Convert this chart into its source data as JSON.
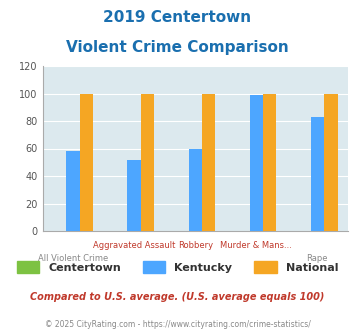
{
  "title_line1": "2019 Centertown",
  "title_line2": "Violent Crime Comparison",
  "categories": [
    "All Violent Crime",
    "Aggravated Assault",
    "Robbery",
    "Murder & Mans...",
    "Rape"
  ],
  "centertown": [
    0,
    0,
    0,
    0,
    0
  ],
  "kentucky": [
    58,
    52,
    60,
    99,
    83
  ],
  "national": [
    100,
    100,
    100,
    100,
    100
  ],
  "color_centertown": "#7dc242",
  "color_kentucky": "#4da6ff",
  "color_national": "#f5a623",
  "ylim": [
    0,
    120
  ],
  "yticks": [
    0,
    20,
    40,
    60,
    80,
    100,
    120
  ],
  "bg_color": "#dce9ee",
  "title_color": "#1a6faf",
  "xlabel_color_top": "#c0392b",
  "xlabel_color_bot": "#888888",
  "note_text": "Compared to U.S. average. (U.S. average equals 100)",
  "footer_text": "© 2025 CityRating.com - https://www.cityrating.com/crime-statistics/",
  "note_color": "#c0392b",
  "footer_color": "#888888",
  "legend_labels": [
    "Centertown",
    "Kentucky",
    "National"
  ]
}
